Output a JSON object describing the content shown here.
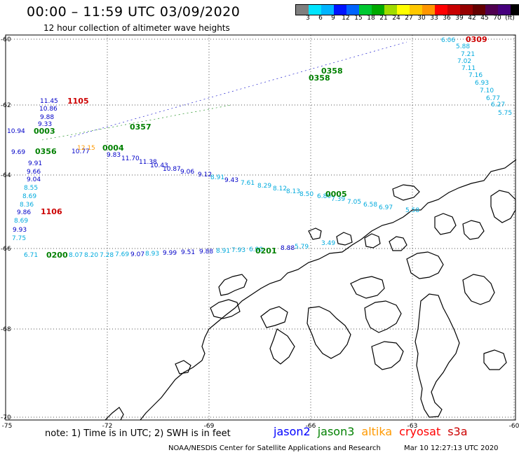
{
  "header": {
    "title": "00:00 – 11:59 UTC 03/09/2020",
    "subtitle": "12 hour collection of altimeter wave heights"
  },
  "colorscale": {
    "colors": [
      "#7f7f7f",
      "#00e5ff",
      "#00b4ff",
      "#0014ff",
      "#0064ff",
      "#00c832",
      "#00aa00",
      "#a0dc00",
      "#ffff00",
      "#ffc800",
      "#ff9600",
      "#ff0000",
      "#c80000",
      "#960000",
      "#640000",
      "#500050",
      "#46007d",
      "#000000"
    ],
    "ticks": [
      "3",
      "6",
      "9",
      "12",
      "15",
      "18",
      "21",
      "24",
      "27",
      "30",
      "33",
      "36",
      "39",
      "42",
      "45",
      "70",
      "(ft)"
    ]
  },
  "map": {
    "lon_labels": [
      "-75",
      "-72",
      "-69",
      "-66",
      "-63",
      "-60"
    ],
    "lat_labels": [
      "-60",
      "-62",
      "-64",
      "-66",
      "-68",
      "-70"
    ],
    "colors": {
      "jason2": "#0000c8",
      "jason3": "#008000",
      "altika": "#ff9900",
      "cryosat": "#cc0000",
      "s3a": "#cc0000",
      "cyan": "#00aadd",
      "coast": "#000000",
      "grid": "#555555"
    },
    "times": [
      {
        "text": "0309",
        "sat": "cryosat"
      },
      {
        "text": "0358",
        "sat": "jason3"
      },
      {
        "text": "0358",
        "sat": "jason3"
      },
      {
        "text": "1105",
        "sat": "cryosat"
      },
      {
        "text": "0003",
        "sat": "jason3"
      },
      {
        "text": "0356",
        "sat": "jason3"
      },
      {
        "text": "0357",
        "sat": "jason3"
      },
      {
        "text": "0004",
        "sat": "jason3"
      },
      {
        "text": "0005",
        "sat": "jason3"
      },
      {
        "text": "1106",
        "sat": "cryosat"
      },
      {
        "text": "0200",
        "sat": "jason3"
      },
      {
        "text": "0201",
        "sat": "jason3"
      }
    ],
    "track_values": [
      {
        "text": "6.06",
        "sat": "cyan"
      },
      {
        "text": "5.88",
        "sat": "cyan"
      },
      {
        "text": "7.21",
        "sat": "cyan"
      },
      {
        "text": "7.02",
        "sat": "cyan"
      },
      {
        "text": "7.11",
        "sat": "cyan"
      },
      {
        "text": "7.16",
        "sat": "cyan"
      },
      {
        "text": "6.93",
        "sat": "cyan"
      },
      {
        "text": "7.10",
        "sat": "cyan"
      },
      {
        "text": "6.77",
        "sat": "cyan"
      },
      {
        "text": "6.27",
        "sat": "cyan"
      },
      {
        "text": "5.75",
        "sat": "cyan"
      },
      {
        "text": "11.45",
        "sat": "jason2"
      },
      {
        "text": "10.86",
        "sat": "jason2"
      },
      {
        "text": "9.88",
        "sat": "jason2"
      },
      {
        "text": "9.33",
        "sat": "jason2"
      },
      {
        "text": "10.94",
        "sat": "jason2"
      },
      {
        "text": "9.69",
        "sat": "jason2"
      },
      {
        "text": "9.91",
        "sat": "jason2"
      },
      {
        "text": "9.66",
        "sat": "jason2"
      },
      {
        "text": "9.04",
        "sat": "jason2"
      },
      {
        "text": "8.55",
        "sat": "cyan"
      },
      {
        "text": "8.69",
        "sat": "cyan"
      },
      {
        "text": "8.36",
        "sat": "cyan"
      },
      {
        "text": "9.86",
        "sat": "jason2"
      },
      {
        "text": "8.69",
        "sat": "cyan"
      },
      {
        "text": "9.93",
        "sat": "jason2"
      },
      {
        "text": "7.75",
        "sat": "cyan"
      },
      {
        "text": "10.77",
        "sat": "jason2"
      },
      {
        "text": "9.83",
        "sat": "jason2"
      },
      {
        "text": "11.70",
        "sat": "jason2"
      },
      {
        "text": "11.38",
        "sat": "jason2"
      },
      {
        "text": "10.43",
        "sat": "jason2"
      },
      {
        "text": "10.87",
        "sat": "jason2"
      },
      {
        "text": "9.06",
        "sat": "jason2"
      },
      {
        "text": "9.12",
        "sat": "jason2"
      },
      {
        "text": "8.91",
        "sat": "cyan"
      },
      {
        "text": "9.43",
        "sat": "jason2"
      },
      {
        "text": "7.61",
        "sat": "cyan"
      },
      {
        "text": "8.29",
        "sat": "cyan"
      },
      {
        "text": "8.12",
        "sat": "cyan"
      },
      {
        "text": "8.13",
        "sat": "cyan"
      },
      {
        "text": "8.50",
        "sat": "cyan"
      },
      {
        "text": "6.80",
        "sat": "cyan"
      },
      {
        "text": "7.39",
        "sat": "cyan"
      },
      {
        "text": "7.05",
        "sat": "cyan"
      },
      {
        "text": "6.58",
        "sat": "cyan"
      },
      {
        "text": "6.97",
        "sat": "cyan"
      },
      {
        "text": "5.58",
        "sat": "cyan"
      },
      {
        "text": "6.71",
        "sat": "cyan"
      },
      {
        "text": "8.07",
        "sat": "cyan"
      },
      {
        "text": "8.20",
        "sat": "cyan"
      },
      {
        "text": "7.28",
        "sat": "cyan"
      },
      {
        "text": "7.69",
        "sat": "cyan"
      },
      {
        "text": "9.07",
        "sat": "jason2"
      },
      {
        "text": "8.93",
        "sat": "cyan"
      },
      {
        "text": "9.99",
        "sat": "jason2"
      },
      {
        "text": "9.51",
        "sat": "jason2"
      },
      {
        "text": "9.88",
        "sat": "jason2"
      },
      {
        "text": "8.91",
        "sat": "cyan"
      },
      {
        "text": "7.93",
        "sat": "cyan"
      },
      {
        "text": "6.90",
        "sat": "cyan"
      },
      {
        "text": "8.88",
        "sat": "jason2"
      },
      {
        "text": "5.79",
        "sat": "cyan"
      },
      {
        "text": "3.49",
        "sat": "cyan"
      },
      {
        "text": "12.15",
        "sat": "altika"
      }
    ]
  },
  "footer": {
    "note": "note: 1) Time is in UTC; 2) SWH is in feet",
    "satellites": [
      {
        "name": "jason2",
        "color": "#0000ff"
      },
      {
        "name": "jason3",
        "color": "#008000"
      },
      {
        "name": "altika",
        "color": "#ff9900"
      },
      {
        "name": "cryosat",
        "color": "#ff0000"
      },
      {
        "name": "s3a",
        "color": "#cc0000"
      }
    ],
    "credit": "NOAA/NESDIS Center for Satellite Applications and Research",
    "timestamp": "Mar 10 12:27:13 UTC 2020"
  }
}
